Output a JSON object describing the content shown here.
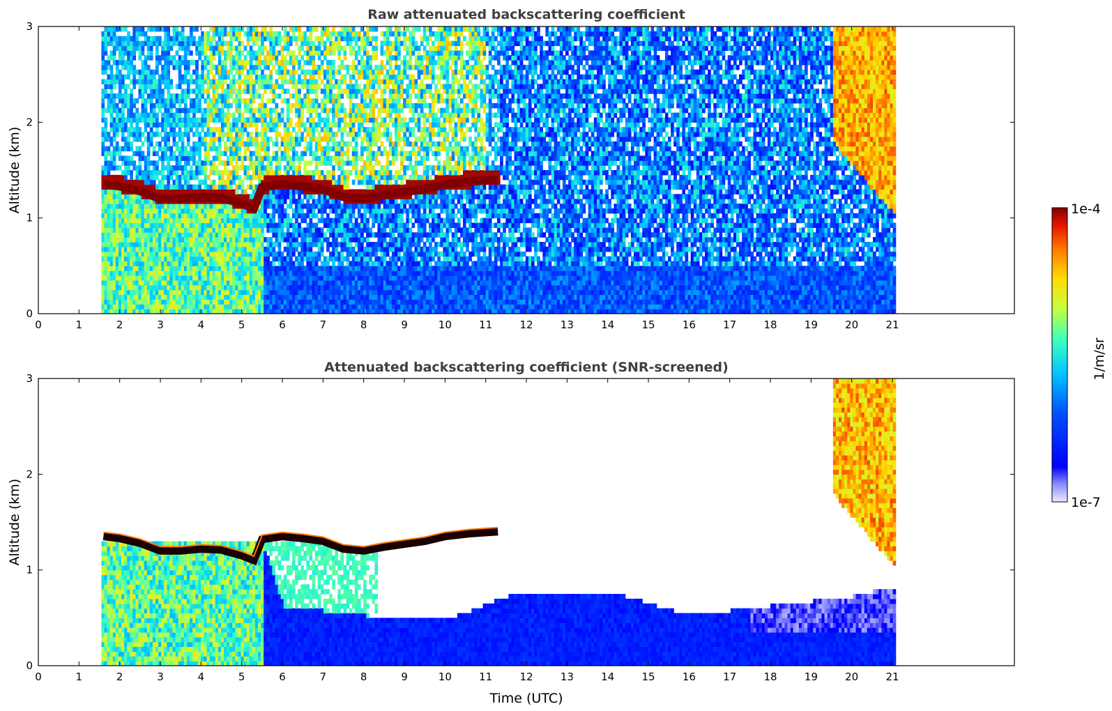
{
  "chart_data": [
    {
      "type": "heatmap",
      "title": "Raw attenuated backscattering coefficient",
      "xlabel": "",
      "ylabel": "Altitude (km)",
      "xlim": [
        0,
        24
      ],
      "ylim": [
        0,
        3
      ],
      "xticks": [
        "0",
        "1",
        "2",
        "3",
        "4",
        "5",
        "6",
        "7",
        "8",
        "9",
        "10",
        "11",
        "12",
        "13",
        "14",
        "15",
        "16",
        "17",
        "18",
        "19",
        "20",
        "21"
      ],
      "yticks": [
        "0",
        "1",
        "2",
        "3"
      ],
      "data_time_range": [
        1.55,
        21.05
      ],
      "cloud_base_km": [
        {
          "t": 1.6,
          "z": 1.35
        },
        {
          "t": 2.0,
          "z": 1.33
        },
        {
          "t": 2.5,
          "z": 1.28
        },
        {
          "t": 3.0,
          "z": 1.2
        },
        {
          "t": 3.5,
          "z": 1.2
        },
        {
          "t": 4.0,
          "z": 1.22
        },
        {
          "t": 4.5,
          "z": 1.21
        },
        {
          "t": 5.0,
          "z": 1.15
        },
        {
          "t": 5.3,
          "z": 1.1
        },
        {
          "t": 5.5,
          "z": 1.32
        },
        {
          "t": 6.0,
          "z": 1.35
        },
        {
          "t": 6.5,
          "z": 1.33
        },
        {
          "t": 7.0,
          "z": 1.3
        },
        {
          "t": 7.5,
          "z": 1.22
        },
        {
          "t": 8.0,
          "z": 1.2
        },
        {
          "t": 8.5,
          "z": 1.24
        },
        {
          "t": 9.0,
          "z": 1.27
        },
        {
          "t": 9.5,
          "z": 1.3
        },
        {
          "t": 10.0,
          "z": 1.35
        },
        {
          "t": 10.6,
          "z": 1.38
        },
        {
          "t": 11.3,
          "z": 1.4
        }
      ],
      "high_cloud": {
        "t_start": 19.5,
        "t_end": 21.05,
        "z_top": 3.0,
        "z_bottom": 1.0
      }
    },
    {
      "type": "heatmap",
      "title": "Attenuated backscattering coefficient (SNR-screened)",
      "xlabel": "Time (UTC)",
      "ylabel": "Altitude (km)",
      "xlim": [
        0,
        24
      ],
      "ylim": [
        0,
        3
      ],
      "xticks": [
        "0",
        "1",
        "2",
        "3",
        "4",
        "5",
        "6",
        "7",
        "8",
        "9",
        "10",
        "11",
        "12",
        "13",
        "14",
        "15",
        "16",
        "17",
        "18",
        "19",
        "20",
        "21"
      ],
      "yticks": [
        "0",
        "1",
        "2",
        "3"
      ],
      "data_time_range": [
        1.55,
        21.05
      ],
      "boundary_layer_top_km": [
        {
          "t": 1.6,
          "z": 1.3
        },
        {
          "t": 5.5,
          "z": 1.25
        },
        {
          "t": 6.0,
          "z": 0.6
        },
        {
          "t": 8.0,
          "z": 0.5
        },
        {
          "t": 10.0,
          "z": 0.45
        },
        {
          "t": 11.5,
          "z": 0.7
        },
        {
          "t": 14.0,
          "z": 0.75
        },
        {
          "t": 16.0,
          "z": 0.5
        },
        {
          "t": 18.0,
          "z": 0.6
        },
        {
          "t": 20.0,
          "z": 0.7
        },
        {
          "t": 21.0,
          "z": 0.8
        }
      ]
    }
  ],
  "colorbar": {
    "label": "1/m/sr",
    "max_label": "1e-4",
    "min_label": "1e-7",
    "colormap": [
      "#ebebff",
      "#8c8cff",
      "#0000ff",
      "#0050ff",
      "#00c8ff",
      "#3cffc0",
      "#c8ff3c",
      "#ffdc00",
      "#ff7800",
      "#e61400",
      "#800000"
    ]
  }
}
